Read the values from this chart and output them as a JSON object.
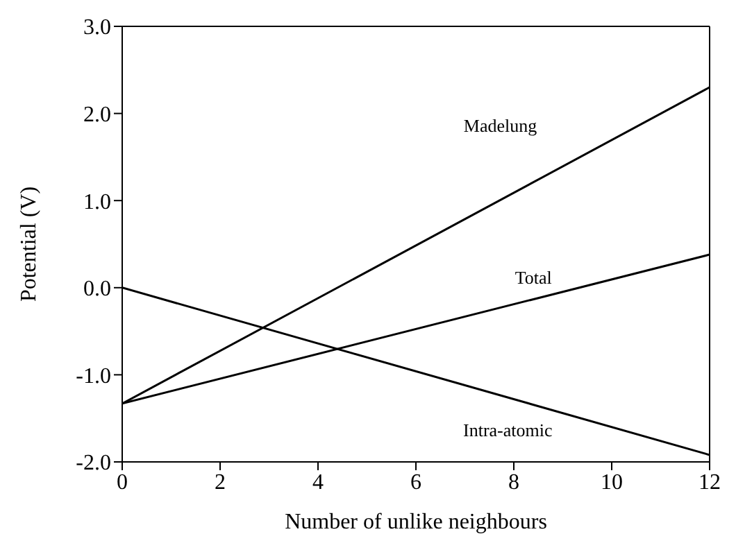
{
  "chart_data": {
    "type": "line",
    "xlabel": "Number of unlike neighbours",
    "ylabel": "Potential (V)",
    "xlim": [
      0,
      12
    ],
    "xticks": [
      0,
      2,
      4,
      6,
      8,
      10,
      12
    ],
    "ylim": [
      -2,
      3
    ],
    "yticks": [
      {
        "value": -2,
        "label": "-2.0"
      },
      {
        "value": -1,
        "label": "-1.0"
      },
      {
        "value": 0,
        "label": "0.0"
      },
      {
        "value": 1,
        "label": "1.0"
      },
      {
        "value": 2,
        "label": "2.0"
      },
      {
        "value": 3,
        "label": "3.0"
      }
    ],
    "x": [
      0,
      12
    ],
    "grid": false,
    "legend": false,
    "marker": "none",
    "line_style": "solid",
    "series": [
      {
        "name": "Madelung",
        "color": "#000000",
        "values": [
          -1.33,
          2.3
        ]
      },
      {
        "name": "Total",
        "color": "#000000",
        "values": [
          -1.33,
          0.38
        ]
      },
      {
        "name": "Intra-atomic",
        "color": "#000000",
        "values": [
          0,
          -1.92
        ]
      }
    ]
  }
}
